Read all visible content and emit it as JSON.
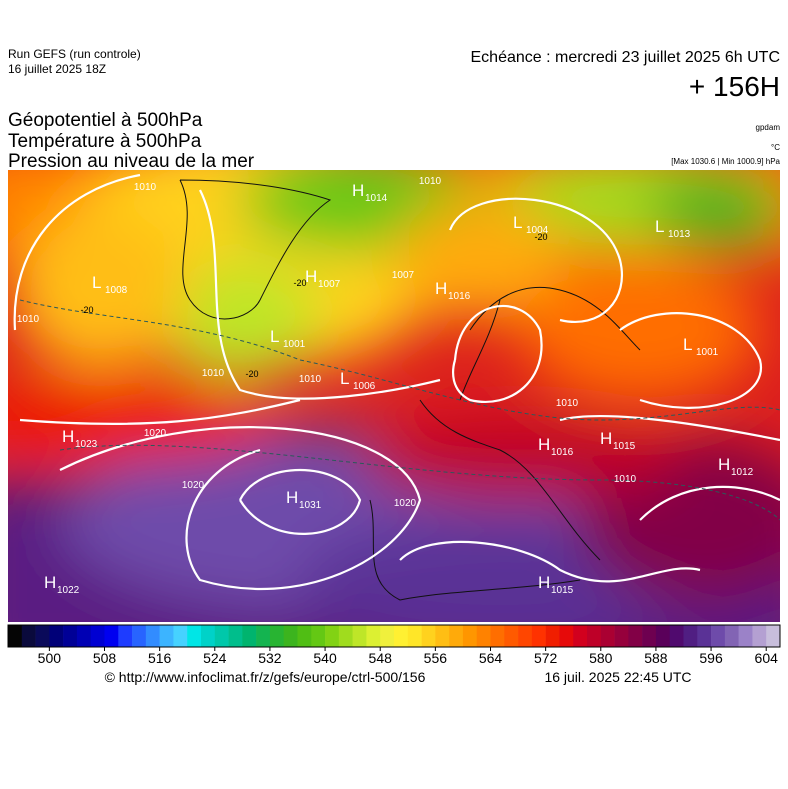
{
  "header": {
    "run": "Run GEFS (run controle)",
    "run_date": "16 juillet 2025 18Z",
    "valid": "Echéance : mercredi 23 juillet 2025 6h UTC",
    "lead": "+ 156H",
    "titles": [
      "Géopotentiel à 500hPa",
      "Température à 500hPa",
      "Pression au niveau de la mer"
    ],
    "units": [
      "gpdam",
      "°C",
      "[Max 1030.6 | Min 1000.9] hPa"
    ]
  },
  "centers": [
    {
      "letter": "H",
      "value": 1014
    },
    {
      "letter": "L",
      "value": 1008
    },
    {
      "letter": "L",
      "value": 1004
    },
    {
      "letter": "L",
      "value": 1013
    },
    {
      "letter": "H",
      "value": 1007
    },
    {
      "letter": "H",
      "value": 1016
    },
    {
      "letter": "L",
      "value": 1001
    },
    {
      "letter": "L",
      "value": 1001
    },
    {
      "letter": "L",
      "value": 1006
    },
    {
      "letter": "H",
      "value": 1023
    },
    {
      "letter": "H",
      "value": 1016
    },
    {
      "letter": "H",
      "value": 1015
    },
    {
      "letter": "H",
      "value": 1012
    },
    {
      "letter": "H",
      "value": 1031
    },
    {
      "letter": "H",
      "value": 1022
    },
    {
      "letter": "H",
      "value": 1015
    }
  ],
  "isobar_labels": [
    1010,
    1010,
    1007,
    1010,
    1010,
    1020,
    1020,
    1020,
    1010,
    1010,
    1010
  ],
  "temperature_labels": [
    -20,
    -20,
    -20,
    -20
  ],
  "colorbar": {
    "range": [
      494,
      606
    ],
    "ticks": [
      500,
      508,
      516,
      524,
      532,
      540,
      548,
      556,
      564,
      572,
      580,
      588,
      596,
      604
    ],
    "colors": [
      "#050505",
      "#0a0a3c",
      "#0a0a5a",
      "#000078",
      "#000096",
      "#0000b4",
      "#0000d2",
      "#0000f0",
      "#1e3cff",
      "#2864ff",
      "#328cff",
      "#3cb4ff",
      "#46d2ff",
      "#00e6e6",
      "#00d2c8",
      "#00c8aa",
      "#00be8c",
      "#00b46e",
      "#14b450",
      "#28b432",
      "#3cb41e",
      "#50be14",
      "#64c814",
      "#82d214",
      "#a0dc1e",
      "#bee628",
      "#dcf032",
      "#f0f03c",
      "#fff032",
      "#ffe628",
      "#ffd21e",
      "#ffbe14",
      "#ffaa0a",
      "#ff9600",
      "#ff8200",
      "#ff6e00",
      "#ff5a00",
      "#ff4600",
      "#ff3200",
      "#f01e00",
      "#e60a0a",
      "#d2001e",
      "#be0028",
      "#aa0032",
      "#96003c",
      "#820046",
      "#6e0050",
      "#5a005a",
      "#500a6e",
      "#501e82",
      "#5a3296",
      "#6e4baa",
      "#8264b4",
      "#9b82c8",
      "#b4a0d2",
      "#c8bedc"
    ]
  },
  "footer": {
    "source": "© http://www.infoclimat.fr/z/gefs/europe/ctrl-500/156",
    "generated": "16 juil. 2025 22:45 UTC"
  }
}
